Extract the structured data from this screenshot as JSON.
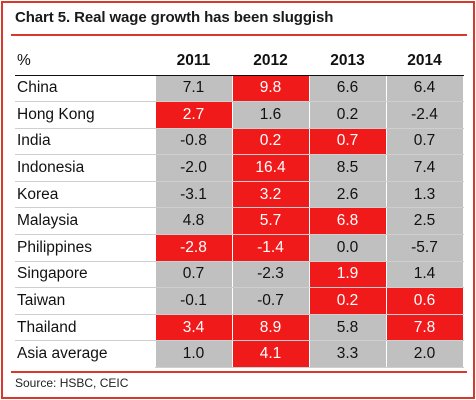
{
  "chart_data": {
    "type": "table",
    "title": "Chart 5. Real wage growth has been sluggish",
    "unit_label": "%",
    "columns": [
      "2011",
      "2012",
      "2013",
      "2014"
    ],
    "rows": [
      {
        "label": "China",
        "values": [
          "7.1",
          "9.8",
          "6.6",
          "6.4"
        ],
        "highlight": [
          false,
          true,
          false,
          false
        ]
      },
      {
        "label": "Hong Kong",
        "values": [
          "2.7",
          "1.6",
          "0.2",
          "-2.4"
        ],
        "highlight": [
          true,
          false,
          false,
          false
        ]
      },
      {
        "label": "India",
        "values": [
          "-0.8",
          "0.2",
          "0.7",
          "0.7"
        ],
        "highlight": [
          false,
          true,
          true,
          false
        ]
      },
      {
        "label": "Indonesia",
        "values": [
          "-2.0",
          "16.4",
          "8.5",
          "7.4"
        ],
        "highlight": [
          false,
          true,
          false,
          false
        ]
      },
      {
        "label": "Korea",
        "values": [
          "-3.1",
          "3.2",
          "2.6",
          "1.3"
        ],
        "highlight": [
          false,
          true,
          false,
          false
        ]
      },
      {
        "label": "Malaysia",
        "values": [
          "4.8",
          "5.7",
          "6.8",
          "2.5"
        ],
        "highlight": [
          false,
          true,
          true,
          false
        ]
      },
      {
        "label": "Philippines",
        "values": [
          "-2.8",
          "-1.4",
          "0.0",
          "-5.7"
        ],
        "highlight": [
          true,
          true,
          false,
          false
        ]
      },
      {
        "label": "Singapore",
        "values": [
          "0.7",
          "-2.3",
          "1.9",
          "1.4"
        ],
        "highlight": [
          false,
          false,
          true,
          false
        ]
      },
      {
        "label": "Taiwan",
        "values": [
          "-0.1",
          "-0.7",
          "0.2",
          "0.6"
        ],
        "highlight": [
          false,
          false,
          true,
          true
        ]
      },
      {
        "label": "Thailand",
        "values": [
          "3.4",
          "8.9",
          "5.8",
          "7.8"
        ],
        "highlight": [
          true,
          true,
          false,
          true
        ]
      }
    ],
    "summary_row": {
      "label": "Asia average",
      "values": [
        "1.0",
        "4.1",
        "3.3",
        "2.0"
      ],
      "highlight": [
        false,
        true,
        false,
        false
      ]
    },
    "source": "Source: HSBC, CEIC"
  },
  "colors": {
    "highlight": "#f01a1a",
    "cell_gray": "#c0c0c0",
    "rule": "#d63a2a"
  }
}
